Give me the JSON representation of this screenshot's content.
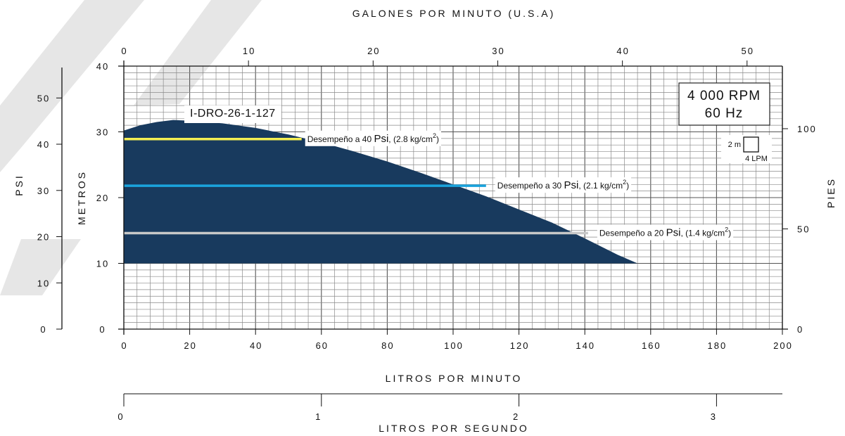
{
  "chart_data": {
    "type": "area",
    "model_label": "I-DRO-26-1-127",
    "speed_box": {
      "rpm": "4 000 RPM",
      "freq": "60 Hz"
    },
    "scale_legend": {
      "m": "2 m",
      "lpm": "4 LPM"
    },
    "axes": {
      "bottom": {
        "label": "LITROS POR MINUTO",
        "range": [
          0,
          200
        ],
        "ticks": [
          "0",
          "20",
          "40",
          "60",
          "80",
          "100",
          "120",
          "140",
          "160",
          "180",
          "200"
        ]
      },
      "top": {
        "label": "GALONES POR MINUTO (U.S.A)",
        "ticks": [
          "0",
          "10",
          "20",
          "30",
          "40",
          "50"
        ]
      },
      "left_meters": {
        "label": "METROS",
        "range": [
          0,
          40
        ],
        "ticks": [
          "0",
          "10",
          "20",
          "30",
          "40"
        ]
      },
      "left_psi": {
        "label": "PSI",
        "ticks": [
          "0",
          "10",
          "20",
          "30",
          "40",
          "50"
        ]
      },
      "right_feet": {
        "label": "PIES",
        "ticks": [
          "0",
          "50",
          "100"
        ]
      },
      "bottom_lps": {
        "label": "LITROS POR SEGUNDO",
        "ticks": [
          "0",
          "1",
          "2",
          "3"
        ]
      }
    },
    "curve": {
      "name": "I-DRO-26-1-127",
      "color": "#183a5e",
      "x": [
        0,
        5,
        10,
        15,
        20,
        30,
        40,
        50,
        60,
        70,
        80,
        90,
        100,
        110,
        120,
        130,
        140,
        150,
        156
      ],
      "y": [
        30.2,
        31.0,
        31.5,
        31.8,
        31.7,
        31.3,
        30.6,
        29.6,
        28.4,
        27.0,
        25.5,
        23.8,
        22.0,
        20.2,
        18.2,
        16.2,
        13.8,
        11.3,
        10.0
      ],
      "fill_floor": 10
    },
    "operating_lines": [
      {
        "label": "Desempeño a 40 Psi, (2.8 kg/cm2)",
        "psi": "Psi",
        "pre": "Desempeño a 40 ",
        "post": ", (2.8 kg/cm",
        "sup": "2",
        "close": ")",
        "y": 28.9,
        "x_end": 54,
        "color": "#f4ef52"
      },
      {
        "label": "Desempeño a 30 Psi, (2.1 kg/cm2)",
        "psi": "Psi",
        "pre": "Desempeño a 30 ",
        "post": ", (2.1 kg/cm",
        "sup": "2",
        "close": ")",
        "y": 21.8,
        "x_end": 110,
        "color": "#1aa3dd"
      },
      {
        "label": "Desempeño a 20 Psi, (1.4 kg/cm2)",
        "psi": "Psi",
        "pre": "Desempeño a 20 ",
        "post": ", (1.4 kg/cm",
        "sup": "2",
        "close": ")",
        "y": 14.6,
        "x_end": 141,
        "color": "#c8c8c8"
      }
    ],
    "grid": true
  }
}
